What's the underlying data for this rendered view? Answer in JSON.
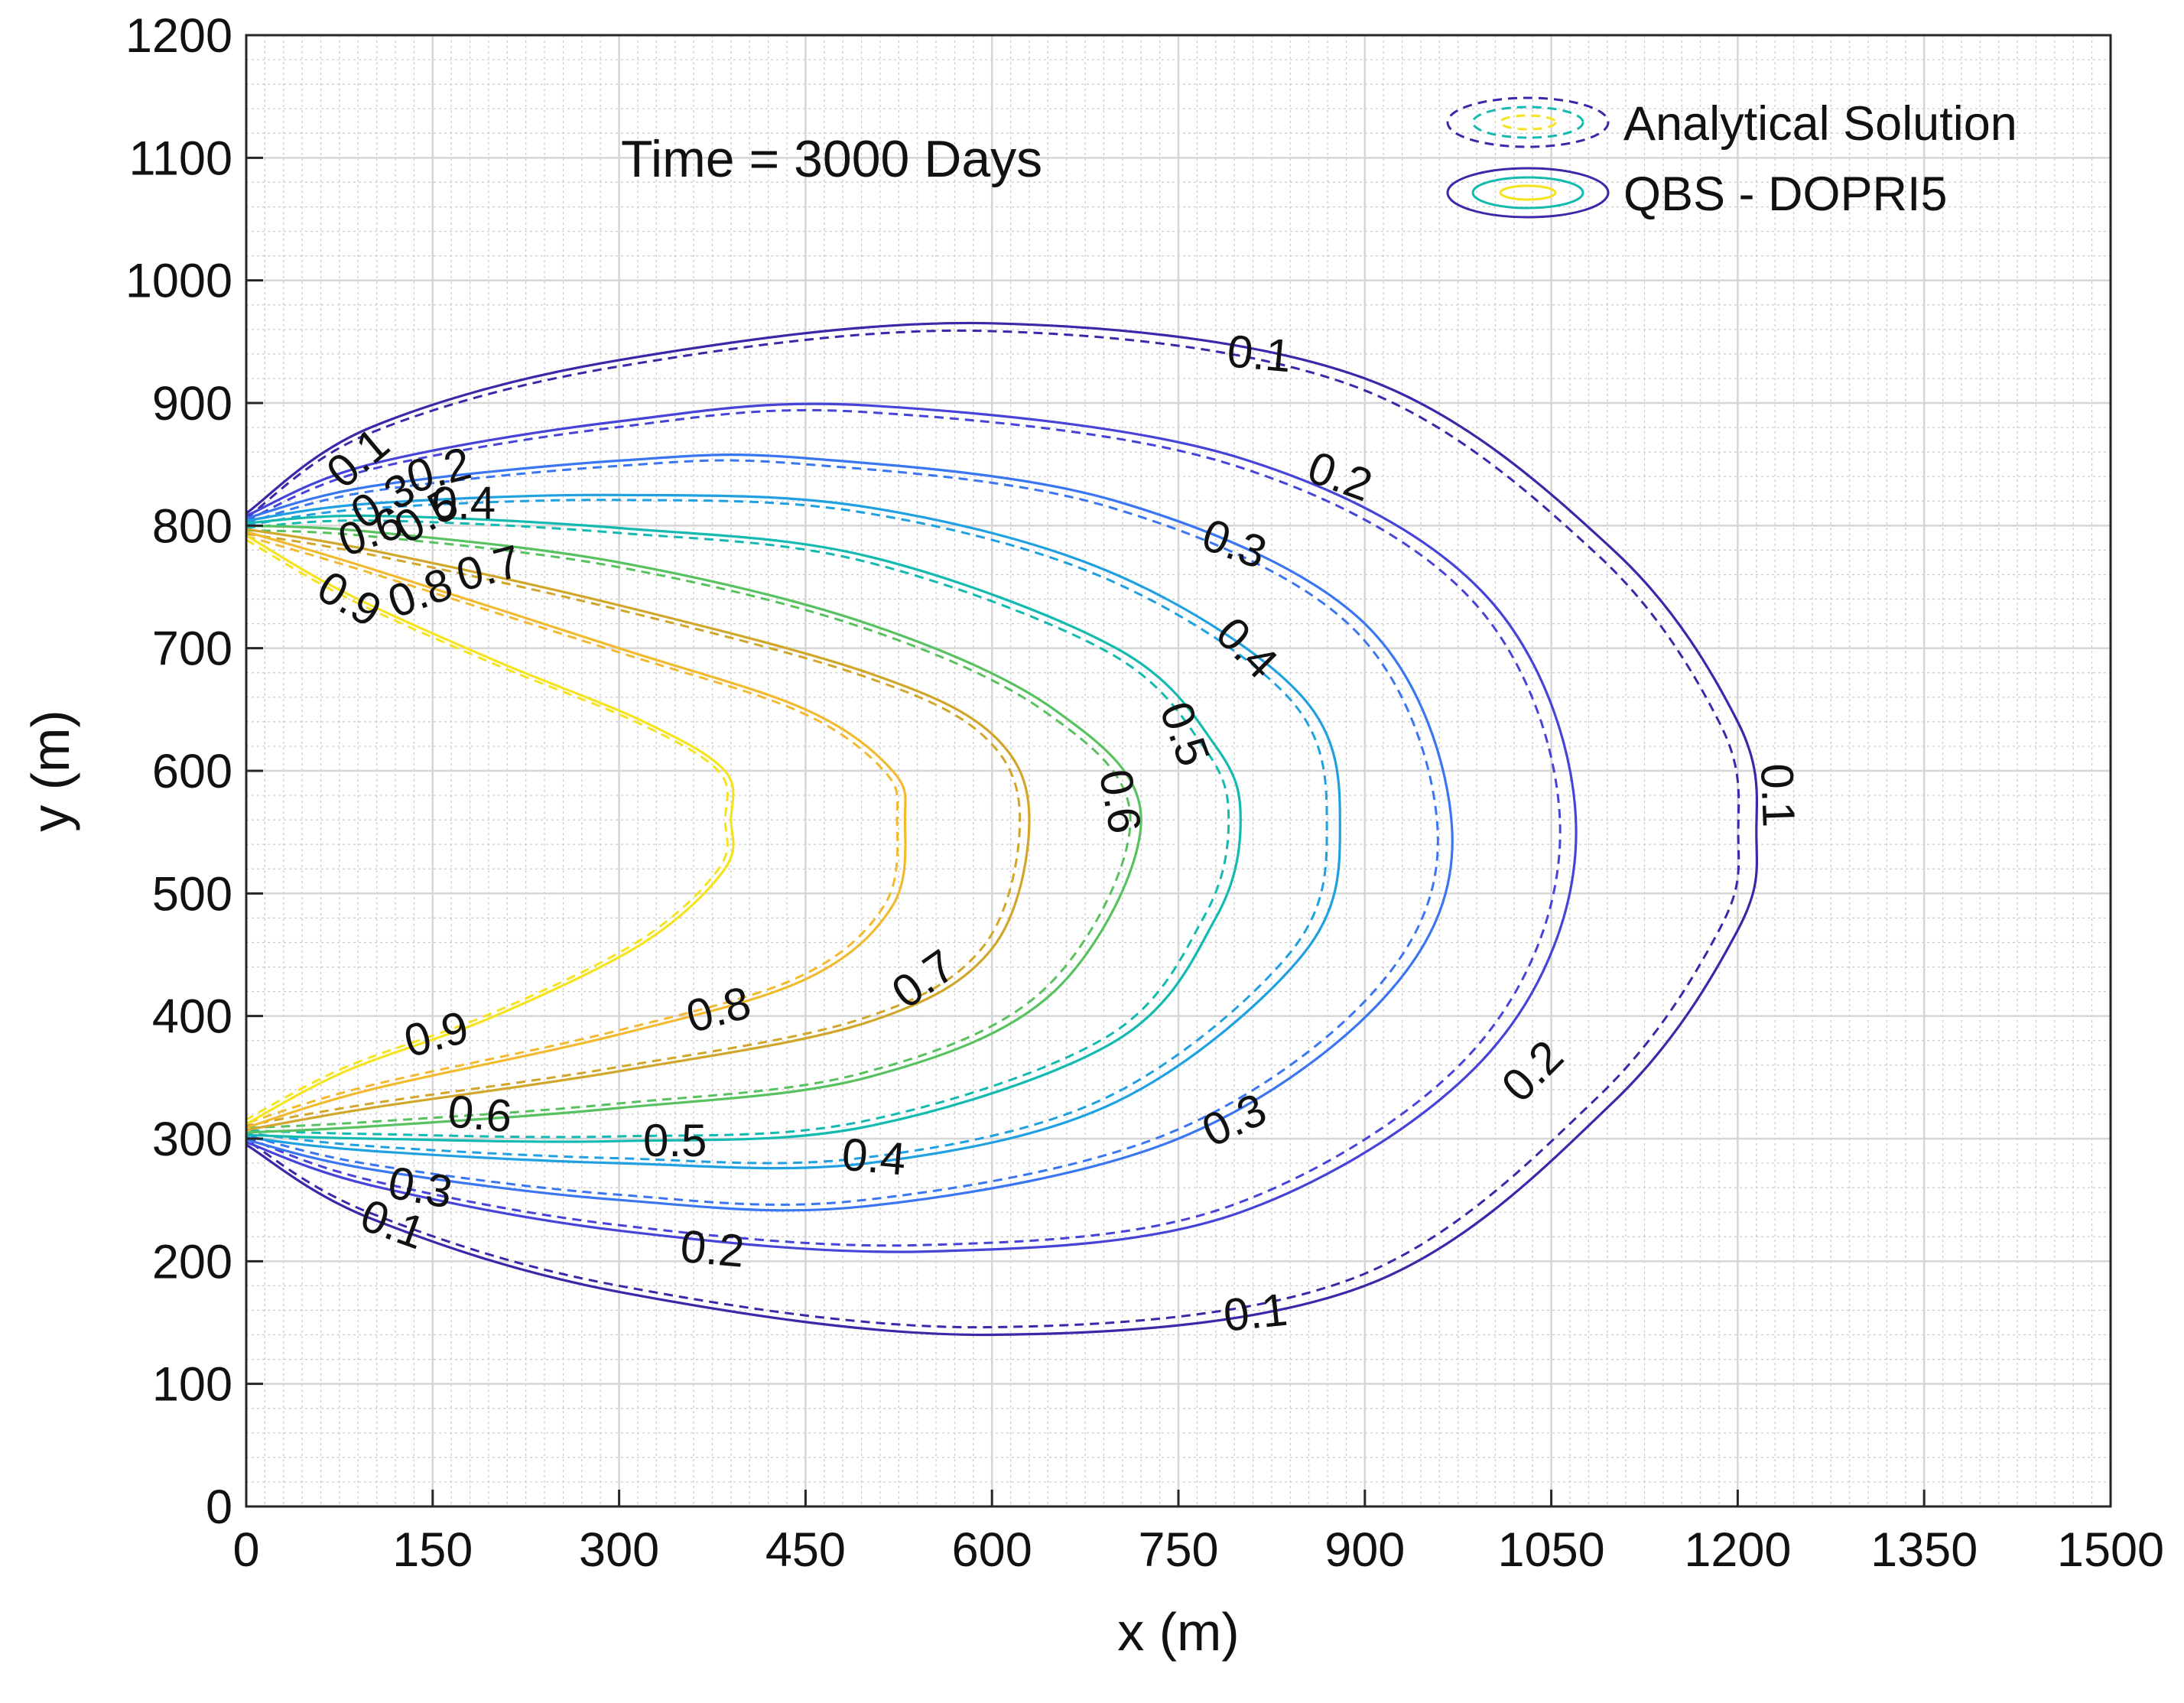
{
  "chart_data": {
    "type": "contour",
    "title": "",
    "annotation": "Time = 3000 Days",
    "xlabel": "x (m)",
    "ylabel": "y (m)",
    "xlim": [
      0,
      1500
    ],
    "ylim": [
      0,
      1200
    ],
    "xticks": [
      0,
      150,
      300,
      450,
      600,
      750,
      900,
      1050,
      1200,
      1350,
      1500
    ],
    "yticks": [
      0,
      100,
      200,
      300,
      400,
      500,
      600,
      700,
      800,
      900,
      1000,
      1100,
      1200
    ],
    "minor_grid_step": 15,
    "minor_grid_step_y": 20,
    "grid": true,
    "legend_position": "top-right",
    "series": [
      {
        "name": "Analytical Solution",
        "style": "dashed"
      },
      {
        "name": "QBS - DOPRI5",
        "style": "solid"
      }
    ],
    "contour_levels": [
      {
        "level": 0.1,
        "label": "0.1",
        "color": "#3E26A8",
        "tip": [
          1215,
          550
        ],
        "top": [
          [
            0,
            810
          ],
          [
            100,
            880
          ],
          [
            300,
            935
          ],
          [
            600,
            965
          ],
          [
            900,
            920
          ],
          [
            1100,
            780
          ],
          [
            1200,
            640
          ],
          [
            1215,
            550
          ]
        ],
        "bottom": [
          [
            0,
            295
          ],
          [
            100,
            235
          ],
          [
            300,
            175
          ],
          [
            600,
            140
          ],
          [
            900,
            180
          ],
          [
            1100,
            330
          ],
          [
            1200,
            470
          ],
          [
            1215,
            550
          ]
        ],
        "labels": [
          {
            "x": 815,
            "y": 940,
            "rot": 5
          },
          {
            "x": 1232,
            "y": 580,
            "rot": 88
          },
          {
            "x": 90,
            "y": 855,
            "rot": -40
          },
          {
            "x": 812,
            "y": 158,
            "rot": -6
          },
          {
            "x": 118,
            "y": 230,
            "rot": 20
          }
        ]
      },
      {
        "level": 0.2,
        "label": "0.2",
        "color": "#4743D8",
        "tip": [
          1070,
          550
        ],
        "top": [
          [
            0,
            808
          ],
          [
            100,
            850
          ],
          [
            300,
            885
          ],
          [
            500,
            898
          ],
          [
            800,
            855
          ],
          [
            1000,
            740
          ],
          [
            1070,
            550
          ]
        ],
        "bottom": [
          [
            0,
            297
          ],
          [
            100,
            262
          ],
          [
            300,
            225
          ],
          [
            550,
            208
          ],
          [
            800,
            240
          ],
          [
            1000,
            370
          ],
          [
            1070,
            550
          ]
        ],
        "labels": [
          {
            "x": 880,
            "y": 840,
            "rot": 20
          },
          {
            "x": 1035,
            "y": 355,
            "rot": -45
          },
          {
            "x": 155,
            "y": 845,
            "rot": -15
          },
          {
            "x": 375,
            "y": 210,
            "rot": 5
          }
        ]
      },
      {
        "level": 0.3,
        "label": "0.3",
        "color": "#3A76F2",
        "tip": [
          970,
          555
        ],
        "top": [
          [
            0,
            806
          ],
          [
            100,
            832
          ],
          [
            300,
            853
          ],
          [
            450,
            855
          ],
          [
            700,
            820
          ],
          [
            900,
            720
          ],
          [
            970,
            555
          ]
        ],
        "bottom": [
          [
            0,
            299
          ],
          [
            100,
            275
          ],
          [
            300,
            250
          ],
          [
            500,
            245
          ],
          [
            750,
            300
          ],
          [
            920,
            420
          ],
          [
            970,
            555
          ]
        ],
        "labels": [
          {
            "x": 795,
            "y": 785,
            "rot": 20
          },
          {
            "x": 795,
            "y": 315,
            "rot": -25
          },
          {
            "x": 110,
            "y": 820,
            "rot": -30
          },
          {
            "x": 140,
            "y": 260,
            "rot": 10
          }
        ]
      },
      {
        "level": 0.4,
        "label": "0.4",
        "color": "#1FA0E0",
        "tip": [
          880,
          555
        ],
        "top": [
          [
            0,
            804
          ],
          [
            100,
            818
          ],
          [
            300,
            825
          ],
          [
            500,
            815
          ],
          [
            700,
            760
          ],
          [
            850,
            660
          ],
          [
            880,
            555
          ]
        ],
        "bottom": [
          [
            0,
            301
          ],
          [
            100,
            290
          ],
          [
            300,
            280
          ],
          [
            500,
            280
          ],
          [
            700,
            330
          ],
          [
            850,
            450
          ],
          [
            880,
            555
          ]
        ],
        "labels": [
          {
            "x": 805,
            "y": 700,
            "rot": 45
          },
          {
            "x": 505,
            "y": 285,
            "rot": 5
          },
          {
            "x": 175,
            "y": 818,
            "rot": 0
          }
        ]
      },
      {
        "level": 0.5,
        "label": "0.5",
        "color": "#14BAB0",
        "tip": [
          800,
          560
        ],
        "top": [
          [
            0,
            802
          ],
          [
            100,
            808
          ],
          [
            300,
            798
          ],
          [
            500,
            775
          ],
          [
            700,
            700
          ],
          [
            780,
            620
          ],
          [
            800,
            560
          ]
        ],
        "bottom": [
          [
            0,
            303
          ],
          [
            100,
            300
          ],
          [
            300,
            298
          ],
          [
            500,
            310
          ],
          [
            700,
            380
          ],
          [
            780,
            480
          ],
          [
            800,
            560
          ]
        ],
        "labels": [
          {
            "x": 755,
            "y": 630,
            "rot": 70
          },
          {
            "x": 345,
            "y": 298,
            "rot": 0
          },
          {
            "x": 145,
            "y": 808,
            "rot": -30
          }
        ]
      },
      {
        "level": 0.6,
        "label": "0.6",
        "color": "#58C160",
        "tip": [
          720,
          560
        ],
        "top": [
          [
            0,
            800
          ],
          [
            100,
            795
          ],
          [
            300,
            770
          ],
          [
            500,
            720
          ],
          [
            650,
            650
          ],
          [
            720,
            560
          ]
        ],
        "bottom": [
          [
            0,
            305
          ],
          [
            100,
            310
          ],
          [
            300,
            325
          ],
          [
            500,
            350
          ],
          [
            650,
            420
          ],
          [
            720,
            560
          ]
        ],
        "labels": [
          {
            "x": 703,
            "y": 575,
            "rot": 80
          },
          {
            "x": 188,
            "y": 320,
            "rot": 5
          },
          {
            "x": 100,
            "y": 795,
            "rot": -20
          }
        ]
      },
      {
        "level": 0.7,
        "label": "0.7",
        "color": "#D0A72A",
        "tip": [
          630,
          560
        ],
        "top": [
          [
            0,
            797
          ],
          [
            100,
            780
          ],
          [
            300,
            735
          ],
          [
            500,
            680
          ],
          [
            600,
            630
          ],
          [
            630,
            560
          ]
        ],
        "bottom": [
          [
            0,
            307
          ],
          [
            100,
            325
          ],
          [
            300,
            355
          ],
          [
            500,
            395
          ],
          [
            600,
            455
          ],
          [
            630,
            560
          ]
        ],
        "labels": [
          {
            "x": 545,
            "y": 430,
            "rot": -35
          },
          {
            "x": 195,
            "y": 765,
            "rot": -15
          }
        ]
      },
      {
        "level": 0.8,
        "label": "0.8",
        "color": "#F1BA30",
        "tip": [
          530,
          560
        ],
        "top": [
          [
            0,
            795
          ],
          [
            100,
            765
          ],
          [
            300,
            700
          ],
          [
            450,
            650
          ],
          [
            520,
            600
          ],
          [
            530,
            560
          ]
        ],
        "bottom": [
          [
            0,
            309
          ],
          [
            100,
            340
          ],
          [
            300,
            385
          ],
          [
            450,
            430
          ],
          [
            520,
            490
          ],
          [
            530,
            560
          ]
        ],
        "labels": [
          {
            "x": 380,
            "y": 405,
            "rot": -15
          },
          {
            "x": 140,
            "y": 745,
            "rot": -20
          }
        ]
      },
      {
        "level": 0.9,
        "label": "0.9",
        "color": "#F6E320",
        "tip": [
          390,
          560
        ],
        "top": [
          [
            0,
            792
          ],
          [
            80,
            745
          ],
          [
            200,
            690
          ],
          [
            320,
            640
          ],
          [
            385,
            600
          ],
          [
            390,
            560
          ]
        ],
        "bottom": [
          [
            0,
            312
          ],
          [
            80,
            355
          ],
          [
            200,
            400
          ],
          [
            320,
            460
          ],
          [
            385,
            520
          ],
          [
            390,
            560
          ]
        ],
        "labels": [
          {
            "x": 153,
            "y": 385,
            "rot": -15
          },
          {
            "x": 83,
            "y": 740,
            "rot": 30
          }
        ]
      }
    ]
  },
  "legend": {
    "entries": [
      {
        "label": "Analytical Solution",
        "style": "dashed"
      },
      {
        "label": "QBS - DOPRI5",
        "style": "solid"
      }
    ]
  }
}
